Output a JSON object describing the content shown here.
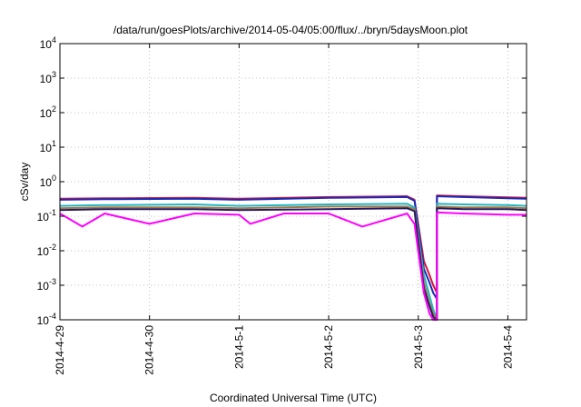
{
  "chart_data": {
    "type": "line",
    "title": "/data/run/goesPlots/archive/2014-05-04/05:00/flux/../bryn/5daysMoon.plot",
    "xlabel": "Coordinated Universal Time (UTC)",
    "ylabel": "cSv/day",
    "yscale": "log",
    "ylim": [
      0.0001,
      10000
    ],
    "xlim": [
      "2014-04-29T00:00",
      "2014-05-04T05:00"
    ],
    "grid": true,
    "x_ticks": [
      {
        "value": "2014-04-29T00:00",
        "label": "2014-4-29"
      },
      {
        "value": "2014-04-30T00:00",
        "label": "2014-4-30"
      },
      {
        "value": "2014-05-01T00:00",
        "label": "2014-5-1"
      },
      {
        "value": "2014-05-02T00:00",
        "label": "2014-5-2"
      },
      {
        "value": "2014-05-03T00:00",
        "label": "2014-5-3"
      },
      {
        "value": "2014-05-04T00:00",
        "label": "2014-5-4"
      }
    ],
    "y_ticks": [
      {
        "value": 0.0001,
        "base": "10",
        "exp": "-4"
      },
      {
        "value": 0.001,
        "base": "10",
        "exp": "-3"
      },
      {
        "value": 0.01,
        "base": "10",
        "exp": "-2"
      },
      {
        "value": 0.1,
        "base": "10",
        "exp": "-1"
      },
      {
        "value": 1,
        "base": "10",
        "exp": "0"
      },
      {
        "value": 10,
        "base": "10",
        "exp": "1"
      },
      {
        "value": 100,
        "base": "10",
        "exp": "2"
      },
      {
        "value": 1000,
        "base": "10",
        "exp": "3"
      },
      {
        "value": 10000,
        "base": "10",
        "exp": "4"
      }
    ],
    "series": [
      {
        "color": "#d4143c",
        "x": [
          "2014-04-29T00:00",
          "2014-04-29T12:00",
          "2014-04-30T12:00",
          "2014-05-01T00:00",
          "2014-05-02T00:00",
          "2014-05-02T21:00",
          "2014-05-02T23:00",
          "2014-05-03T01:30",
          "2014-05-03T03:00",
          "2014-05-03T04:00",
          "2014-05-03T05:00",
          "2014-05-03T05:00",
          "2014-05-03T12:00",
          "2014-05-04T00:00",
          "2014-05-04T05:00"
        ],
        "y": [
          0.32,
          0.33,
          0.34,
          0.32,
          0.36,
          0.38,
          0.3,
          0.005,
          0.002,
          0.001,
          0.0006,
          0.4,
          0.38,
          0.35,
          0.34
        ]
      },
      {
        "color": "#1a2ab8",
        "x": [
          "2014-04-29T00:00",
          "2014-04-29T12:00",
          "2014-04-30T12:00",
          "2014-05-01T00:00",
          "2014-05-02T00:00",
          "2014-05-02T21:00",
          "2014-05-02T23:00",
          "2014-05-03T01:30",
          "2014-05-03T03:00",
          "2014-05-03T04:00",
          "2014-05-03T05:00",
          "2014-05-03T05:00",
          "2014-05-03T12:00",
          "2014-05-04T00:00",
          "2014-05-04T05:00"
        ],
        "y": [
          0.3,
          0.31,
          0.32,
          0.3,
          0.34,
          0.36,
          0.28,
          0.003,
          0.0012,
          0.0006,
          0.0004,
          0.38,
          0.36,
          0.33,
          0.32
        ]
      },
      {
        "color": "#22b4c6",
        "x": [
          "2014-04-29T00:00",
          "2014-04-29T12:00",
          "2014-04-30T12:00",
          "2014-05-01T00:00",
          "2014-05-02T00:00",
          "2014-05-02T21:00",
          "2014-05-02T23:00",
          "2014-05-03T01:30",
          "2014-05-03T03:00",
          "2014-05-03T04:00",
          "2014-05-03T05:00",
          "2014-05-03T05:00",
          "2014-05-03T12:00",
          "2014-05-04T00:00",
          "2014-05-04T05:00"
        ],
        "y": [
          0.2,
          0.21,
          0.22,
          0.2,
          0.22,
          0.23,
          0.18,
          0.002,
          0.0005,
          0.0002,
          0.0001,
          0.23,
          0.22,
          0.21,
          0.2
        ]
      },
      {
        "color": "#9a7a46",
        "x": [
          "2014-04-29T00:00",
          "2014-04-29T12:00",
          "2014-04-30T12:00",
          "2014-05-01T00:00",
          "2014-05-02T00:00",
          "2014-05-02T21:00",
          "2014-05-02T23:00",
          "2014-05-03T01:30",
          "2014-05-03T03:00",
          "2014-05-03T04:00",
          "2014-05-03T05:00",
          "2014-05-03T05:00",
          "2014-05-03T12:00",
          "2014-05-04T00:00",
          "2014-05-04T05:00"
        ],
        "y": [
          0.17,
          0.18,
          0.18,
          0.17,
          0.19,
          0.19,
          0.16,
          0.0012,
          0.0003,
          0.00015,
          0.0001,
          0.19,
          0.18,
          0.18,
          0.17
        ]
      },
      {
        "color": "#2a1a5e",
        "x": [
          "2014-04-29T00:00",
          "2014-04-29T12:00",
          "2014-04-30T12:00",
          "2014-05-01T00:00",
          "2014-05-02T00:00",
          "2014-05-02T21:00",
          "2014-05-02T23:00",
          "2014-05-03T01:30",
          "2014-05-03T03:00",
          "2014-05-03T04:00",
          "2014-05-03T05:00",
          "2014-05-03T05:00",
          "2014-05-03T12:00",
          "2014-05-04T00:00",
          "2014-05-04T05:00"
        ],
        "y": [
          0.15,
          0.16,
          0.16,
          0.15,
          0.16,
          0.17,
          0.14,
          0.0008,
          0.00025,
          0.00012,
          0.0001,
          0.17,
          0.16,
          0.16,
          0.15
        ]
      },
      {
        "color": "#ff00ff",
        "x": [
          "2014-04-29T00:00",
          "2014-04-29T06:00",
          "2014-04-29T12:00",
          "2014-04-30T00:00",
          "2014-04-30T12:00",
          "2014-05-01T00:00",
          "2014-05-01T03:00",
          "2014-05-01T12:00",
          "2014-05-02T00:00",
          "2014-05-02T09:00",
          "2014-05-02T21:00",
          "2014-05-02T23:00",
          "2014-05-03T01:30",
          "2014-05-03T03:00",
          "2014-05-03T04:00",
          "2014-05-03T05:00",
          "2014-05-03T05:00",
          "2014-05-03T12:00",
          "2014-05-04T00:00",
          "2014-05-04T05:00"
        ],
        "y": [
          0.12,
          0.05,
          0.12,
          0.06,
          0.12,
          0.11,
          0.06,
          0.12,
          0.12,
          0.05,
          0.12,
          0.06,
          0.0006,
          0.00015,
          0.0001,
          0.0001,
          0.13,
          0.12,
          0.11,
          0.11
        ]
      }
    ]
  }
}
